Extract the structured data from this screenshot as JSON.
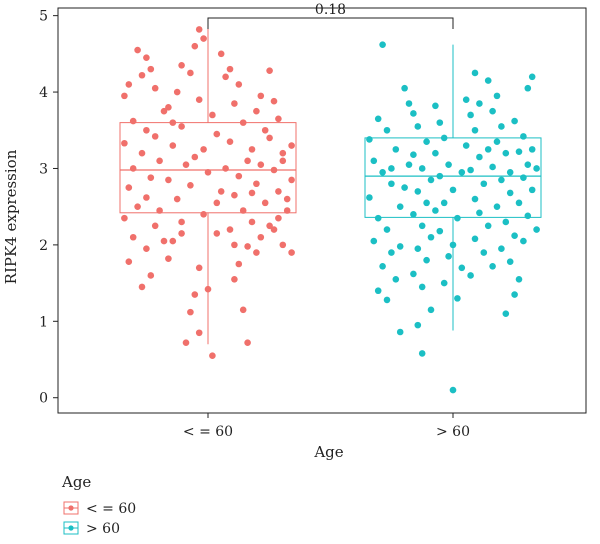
{
  "chart_data": {
    "type": "boxplot",
    "xlabel": "Age",
    "ylabel": "RIPK4 expression",
    "ylim": [
      -0.2,
      5.1
    ],
    "yticks": [
      0,
      1,
      2,
      3,
      4,
      5
    ],
    "categories": [
      "< = 60",
      "> 60"
    ],
    "comparison_label": "0.18",
    "legend": {
      "title": "Age",
      "placement": "bottom-left",
      "entries": [
        "< = 60",
        "> 60"
      ]
    },
    "colors": {
      "< = 60": "#f0706b",
      "> 60": "#1bbfc4"
    },
    "boxes": [
      {
        "name": "< = 60",
        "min": 0.7,
        "q1": 2.42,
        "median": 2.98,
        "q3": 3.6,
        "max": 4.85
      },
      {
        "name": "> 60",
        "min": 0.88,
        "q1": 2.36,
        "median": 2.9,
        "q3": 3.4,
        "max": 4.62
      }
    ],
    "series": [
      {
        "name": "< = 60",
        "points": [
          [
            -0.16,
            4.55
          ],
          [
            -0.14,
            4.45
          ],
          [
            -0.13,
            4.3
          ],
          [
            -0.18,
            4.1
          ],
          [
            -0.15,
            4.22
          ],
          [
            -0.19,
            3.95
          ],
          [
            -0.12,
            4.05
          ],
          [
            -0.1,
            3.75
          ],
          [
            -0.17,
            3.62
          ],
          [
            -0.14,
            3.5
          ],
          [
            -0.19,
            3.33
          ],
          [
            -0.15,
            3.2
          ],
          [
            -0.11,
            3.1
          ],
          [
            -0.17,
            3.0
          ],
          [
            -0.13,
            2.88
          ],
          [
            -0.18,
            2.75
          ],
          [
            -0.14,
            2.62
          ],
          [
            -0.16,
            2.5
          ],
          [
            -0.19,
            2.35
          ],
          [
            -0.12,
            2.25
          ],
          [
            -0.17,
            2.1
          ],
          [
            -0.14,
            1.95
          ],
          [
            -0.18,
            1.78
          ],
          [
            -0.13,
            1.6
          ],
          [
            -0.15,
            1.45
          ],
          [
            -0.09,
            1.82
          ],
          [
            -0.08,
            2.05
          ],
          [
            -0.06,
            2.3
          ],
          [
            -0.07,
            2.6
          ],
          [
            -0.09,
            2.85
          ],
          [
            -0.05,
            3.05
          ],
          [
            -0.08,
            3.3
          ],
          [
            -0.06,
            3.55
          ],
          [
            -0.09,
            3.8
          ],
          [
            -0.07,
            4.0
          ],
          [
            -0.04,
            4.25
          ],
          [
            -0.06,
            4.35
          ],
          [
            -0.03,
            4.6
          ],
          [
            -0.02,
            4.82
          ],
          [
            -0.01,
            4.7
          ],
          [
            -0.04,
            1.12
          ],
          [
            -0.02,
            0.85
          ],
          [
            -0.05,
            0.72
          ],
          [
            0.01,
            0.55
          ],
          [
            -0.03,
            1.35
          ],
          [
            0.0,
            1.42
          ],
          [
            -0.02,
            1.7
          ],
          [
            0.02,
            2.15
          ],
          [
            -0.01,
            2.4
          ],
          [
            0.03,
            2.7
          ],
          [
            0.0,
            2.95
          ],
          [
            -0.03,
            3.15
          ],
          [
            0.02,
            3.45
          ],
          [
            0.01,
            3.7
          ],
          [
            -0.02,
            3.9
          ],
          [
            0.04,
            4.2
          ],
          [
            0.03,
            4.5
          ],
          [
            0.05,
            4.3
          ],
          [
            0.07,
            4.1
          ],
          [
            0.06,
            3.85
          ],
          [
            0.08,
            3.6
          ],
          [
            0.05,
            3.35
          ],
          [
            0.09,
            3.1
          ],
          [
            0.07,
            2.9
          ],
          [
            0.06,
            2.65
          ],
          [
            0.08,
            2.45
          ],
          [
            0.05,
            2.2
          ],
          [
            0.09,
            1.98
          ],
          [
            0.07,
            1.75
          ],
          [
            0.06,
            1.55
          ],
          [
            0.08,
            1.15
          ],
          [
            0.09,
            0.72
          ],
          [
            0.11,
            1.9
          ],
          [
            0.12,
            2.1
          ],
          [
            0.1,
            2.3
          ],
          [
            0.13,
            2.55
          ],
          [
            0.11,
            2.8
          ],
          [
            0.12,
            3.05
          ],
          [
            0.1,
            3.25
          ],
          [
            0.13,
            3.5
          ],
          [
            0.11,
            3.75
          ],
          [
            0.12,
            3.95
          ],
          [
            0.14,
            4.28
          ],
          [
            0.15,
            3.88
          ],
          [
            0.16,
            3.65
          ],
          [
            0.14,
            3.4
          ],
          [
            0.17,
            3.2
          ],
          [
            0.15,
            2.98
          ],
          [
            0.16,
            2.7
          ],
          [
            0.18,
            2.45
          ],
          [
            0.15,
            2.2
          ],
          [
            0.17,
            2.0
          ],
          [
            0.19,
            1.9
          ],
          [
            0.16,
            2.35
          ],
          [
            0.18,
            2.6
          ],
          [
            0.19,
            2.85
          ],
          [
            0.17,
            3.1
          ],
          [
            0.19,
            3.3
          ],
          [
            -0.11,
            2.45
          ],
          [
            -0.1,
            2.05
          ],
          [
            -0.12,
            3.42
          ],
          [
            -0.08,
            3.6
          ],
          [
            -0.06,
            2.15
          ],
          [
            -0.04,
            2.78
          ],
          [
            -0.01,
            3.25
          ],
          [
            0.02,
            2.55
          ],
          [
            0.04,
            3.0
          ],
          [
            0.06,
            2.0
          ],
          [
            0.1,
            2.68
          ],
          [
            0.14,
            2.25
          ]
        ]
      },
      {
        "name": "> 60",
        "points": [
          [
            -0.17,
            3.65
          ],
          [
            -0.15,
            3.5
          ],
          [
            -0.19,
            3.38
          ],
          [
            -0.13,
            3.25
          ],
          [
            -0.18,
            3.1
          ],
          [
            -0.16,
            2.95
          ],
          [
            -0.14,
            2.8
          ],
          [
            -0.19,
            2.62
          ],
          [
            -0.12,
            2.5
          ],
          [
            -0.17,
            2.35
          ],
          [
            -0.15,
            2.2
          ],
          [
            -0.18,
            2.05
          ],
          [
            -0.14,
            1.9
          ],
          [
            -0.16,
            1.72
          ],
          [
            -0.13,
            1.55
          ],
          [
            -0.17,
            1.4
          ],
          [
            -0.15,
            1.28
          ],
          [
            -0.12,
            0.86
          ],
          [
            -0.1,
            3.85
          ],
          [
            -0.11,
            4.05
          ],
          [
            -0.09,
            3.72
          ],
          [
            -0.08,
            3.55
          ],
          [
            -0.06,
            3.35
          ],
          [
            -0.09,
            3.18
          ],
          [
            -0.07,
            3.0
          ],
          [
            -0.05,
            2.85
          ],
          [
            -0.08,
            2.7
          ],
          [
            -0.06,
            2.55
          ],
          [
            -0.09,
            2.4
          ],
          [
            -0.07,
            2.25
          ],
          [
            -0.05,
            2.1
          ],
          [
            -0.08,
            1.95
          ],
          [
            -0.06,
            1.8
          ],
          [
            -0.09,
            1.62
          ],
          [
            -0.07,
            1.45
          ],
          [
            -0.05,
            1.15
          ],
          [
            -0.08,
            0.95
          ],
          [
            -0.04,
            3.82
          ],
          [
            -0.03,
            3.6
          ],
          [
            -0.02,
            3.4
          ],
          [
            -0.04,
            3.2
          ],
          [
            -0.01,
            3.05
          ],
          [
            -0.03,
            2.9
          ],
          [
            0.0,
            2.72
          ],
          [
            -0.02,
            2.55
          ],
          [
            0.01,
            2.35
          ],
          [
            -0.03,
            2.18
          ],
          [
            0.0,
            2.0
          ],
          [
            -0.01,
            1.85
          ],
          [
            0.02,
            1.7
          ],
          [
            -0.02,
            1.5
          ],
          [
            0.01,
            1.3
          ],
          [
            0.0,
            0.1
          ],
          [
            -0.07,
            0.58
          ],
          [
            -0.16,
            4.62
          ],
          [
            0.03,
            3.9
          ],
          [
            0.04,
            3.7
          ],
          [
            0.05,
            3.5
          ],
          [
            0.03,
            3.3
          ],
          [
            0.06,
            3.15
          ],
          [
            0.04,
            2.98
          ],
          [
            0.07,
            2.8
          ],
          [
            0.05,
            2.6
          ],
          [
            0.06,
            2.42
          ],
          [
            0.08,
            2.25
          ],
          [
            0.05,
            2.08
          ],
          [
            0.07,
            1.9
          ],
          [
            0.09,
            1.72
          ],
          [
            0.06,
            3.85
          ],
          [
            0.05,
            4.25
          ],
          [
            0.08,
            4.15
          ],
          [
            0.1,
            3.95
          ],
          [
            0.09,
            3.75
          ],
          [
            0.11,
            3.55
          ],
          [
            0.1,
            3.35
          ],
          [
            0.12,
            3.2
          ],
          [
            0.09,
            3.02
          ],
          [
            0.11,
            2.85
          ],
          [
            0.13,
            2.68
          ],
          [
            0.1,
            2.5
          ],
          [
            0.12,
            2.3
          ],
          [
            0.14,
            2.12
          ],
          [
            0.11,
            1.95
          ],
          [
            0.13,
            1.78
          ],
          [
            0.15,
            1.55
          ],
          [
            0.12,
            1.1
          ],
          [
            0.14,
            3.62
          ],
          [
            0.16,
            3.42
          ],
          [
            0.15,
            3.22
          ],
          [
            0.17,
            3.05
          ],
          [
            0.16,
            2.88
          ],
          [
            0.18,
            2.72
          ],
          [
            0.15,
            2.55
          ],
          [
            0.17,
            2.38
          ],
          [
            0.19,
            2.2
          ],
          [
            0.16,
            2.05
          ],
          [
            0.18,
            4.2
          ],
          [
            0.17,
            4.05
          ],
          [
            0.19,
            3.0
          ],
          [
            0.14,
            1.35
          ],
          [
            -0.11,
            2.75
          ],
          [
            -0.1,
            3.05
          ],
          [
            -0.04,
            2.45
          ],
          [
            0.02,
            2.95
          ],
          [
            0.08,
            3.25
          ],
          [
            0.13,
            2.95
          ],
          [
            0.18,
            3.25
          ],
          [
            -0.14,
            3.0
          ],
          [
            0.04,
            1.6
          ],
          [
            -0.12,
            1.98
          ]
        ]
      }
    ]
  }
}
